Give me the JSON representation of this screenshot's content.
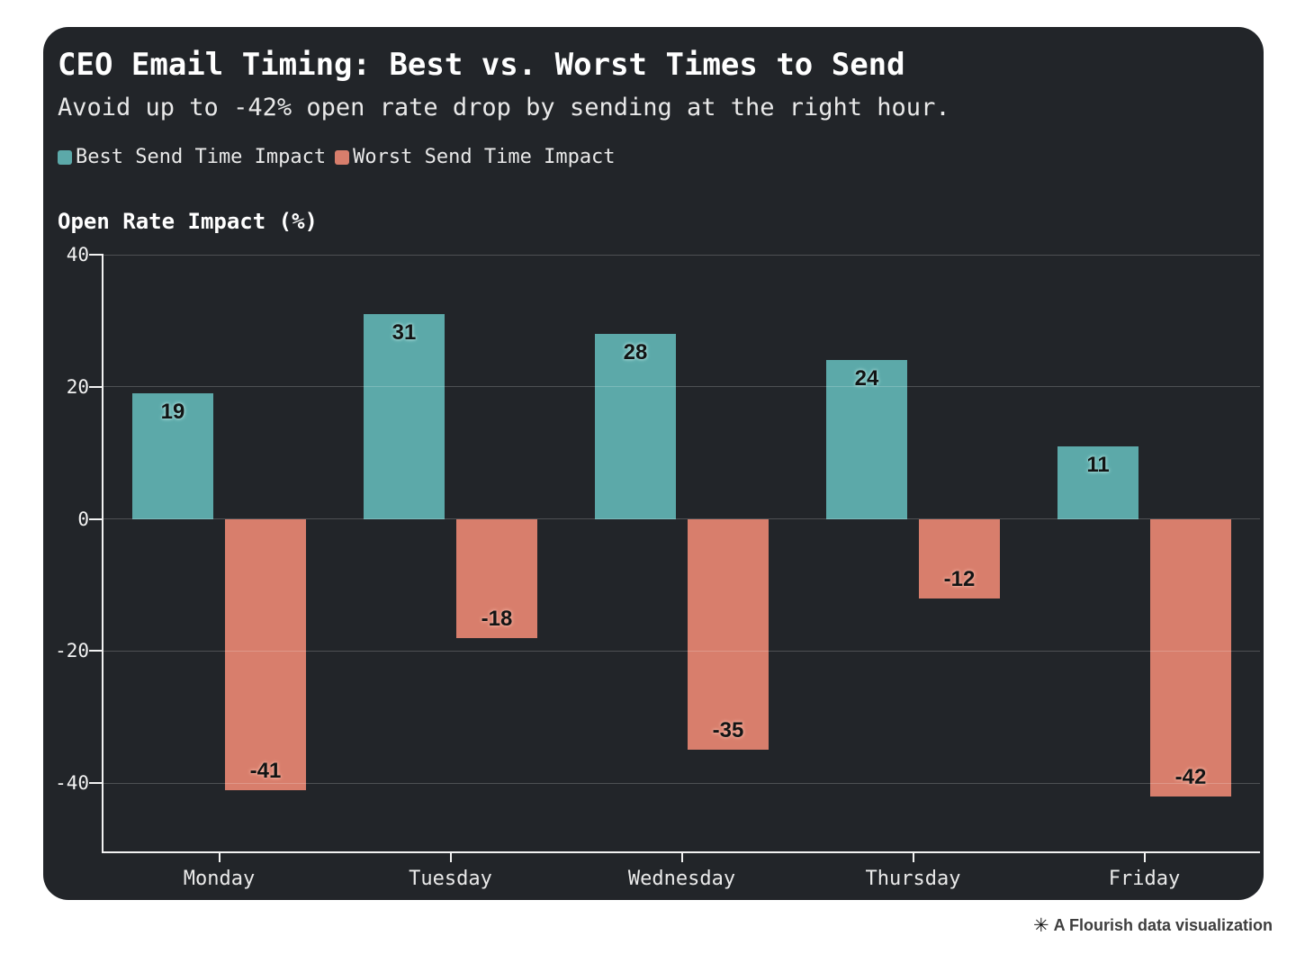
{
  "page": {
    "background": "#ffffff"
  },
  "card": {
    "background": "#222529",
    "title": "CEO Email Timing: Best vs. Worst Times to Send",
    "subtitle": "Avoid up to -42% open rate drop by sending at the right hour."
  },
  "legend": {
    "items": [
      {
        "label": "Best Send Time Impact",
        "color": "#5CA9A9"
      },
      {
        "label": "Worst Send Time Impact",
        "color": "#D87E6C"
      }
    ]
  },
  "chart_data": {
    "type": "bar",
    "title": "CEO Email Timing: Best vs. Worst Times to Send",
    "subtitle": "Avoid up to -42% open rate drop by sending at the right hour.",
    "ylabel": "Open Rate Impact (%)",
    "xlabel": "",
    "categories": [
      "Monday",
      "Tuesday",
      "Wednesday",
      "Thursday",
      "Friday"
    ],
    "series": [
      {
        "name": "Best Send Time Impact",
        "color": "#5CA9A9",
        "label_glow": "#aadedb",
        "values": [
          19,
          31,
          28,
          24,
          11
        ]
      },
      {
        "name": "Worst Send Time Impact",
        "color": "#D87E6C",
        "label_glow": "#f4b3a2",
        "values": [
          -41,
          -18,
          -35,
          -12,
          -42
        ]
      }
    ],
    "yticks": [
      40,
      20,
      0,
      -20,
      -40
    ],
    "ylim": [
      -50.6,
      40
    ],
    "grid": true,
    "legend_position": "top-left",
    "bar_value_labels": true
  },
  "footer": {
    "attribution": "A Flourish data visualization",
    "star_icon": "✳"
  }
}
